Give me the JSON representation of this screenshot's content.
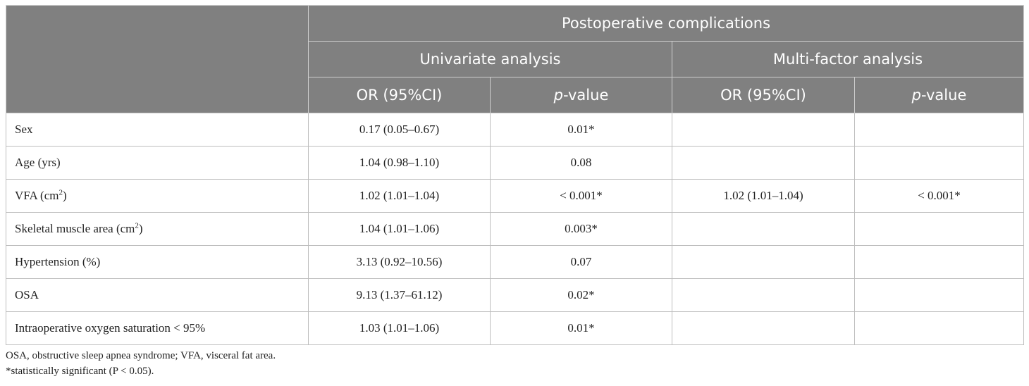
{
  "header": {
    "group_title": "Postoperative complications",
    "univariate": "Univariate analysis",
    "multifactor": "Multi-factor analysis",
    "or_col": "OR (95%CI)",
    "p_italic": "p",
    "p_rest": "-value"
  },
  "rows": [
    {
      "label": "Sex",
      "sup": "",
      "uni_or": "0.17 (0.05–0.67)",
      "uni_p": "0.01*",
      "multi_or": "",
      "multi_p": ""
    },
    {
      "label": "Age (yrs)",
      "sup": "",
      "uni_or": "1.04 (0.98–1.10)",
      "uni_p": "0.08",
      "multi_or": "",
      "multi_p": ""
    },
    {
      "label": "VFA (cm",
      "sup": "2",
      "label_end": ")",
      "uni_or": "1.02 (1.01–1.04)",
      "uni_p": "< 0.001*",
      "multi_or": "1.02 (1.01–1.04)",
      "multi_p": "< 0.001*"
    },
    {
      "label": "Skeletal muscle area (cm",
      "sup": "2",
      "label_end": ")",
      "uni_or": "1.04 (1.01–1.06)",
      "uni_p": "0.003*",
      "multi_or": "",
      "multi_p": ""
    },
    {
      "label": "Hypertension (%)",
      "sup": "",
      "uni_or": "3.13 (0.92–10.56)",
      "uni_p": "0.07",
      "multi_or": "",
      "multi_p": ""
    },
    {
      "label": "OSA",
      "sup": "",
      "uni_or": "9.13 (1.37–61.12)",
      "uni_p": "0.02*",
      "multi_or": "",
      "multi_p": ""
    },
    {
      "label": "Intraoperative oxygen saturation < 95%",
      "sup": "",
      "uni_or": "1.03 (1.01–1.06)",
      "uni_p": "0.01*",
      "multi_or": "",
      "multi_p": ""
    }
  ],
  "footnotes": {
    "abbrev": "OSA, obstructive sleep apnea syndrome; VFA, visceral fat area.",
    "star": "*statistically significant (P < 0.05)."
  }
}
